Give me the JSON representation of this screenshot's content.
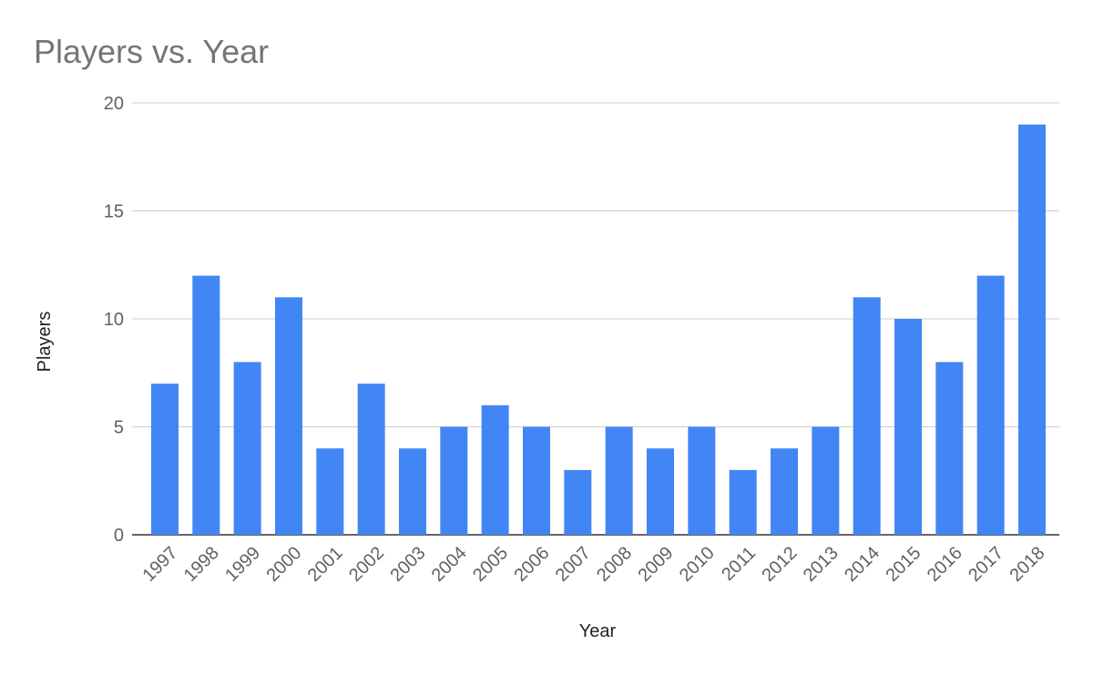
{
  "chart_data": {
    "type": "bar",
    "title": "Players vs. Year",
    "x_label": "Year",
    "y_label": "Players",
    "categories": [
      "1997",
      "1998",
      "1999",
      "2000",
      "2001",
      "2002",
      "2003",
      "2004",
      "2005",
      "2006",
      "2007",
      "2008",
      "2009",
      "2010",
      "2011",
      "2012",
      "2013",
      "2014",
      "2015",
      "2016",
      "2017",
      "2018"
    ],
    "values": [
      7,
      12,
      8,
      11,
      4,
      7,
      4,
      5,
      6,
      5,
      3,
      5,
      4,
      5,
      3,
      4,
      5,
      11,
      10,
      8,
      12,
      19
    ],
    "color": "#4285f4",
    "ylim": [
      0,
      20
    ],
    "yticks": [
      0,
      5,
      10,
      15,
      20
    ],
    "grid": true
  }
}
